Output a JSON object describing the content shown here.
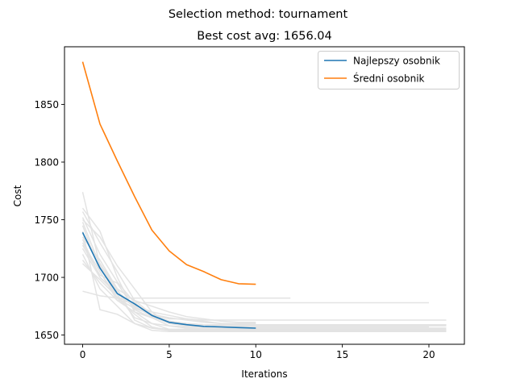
{
  "chart_data": {
    "type": "line",
    "suptitle": "Selection method: tournament",
    "title": "Best cost avg: 1656.04",
    "xlabel": "Iterations",
    "ylabel": "Cost",
    "xlim": [
      -1.05,
      22.05
    ],
    "ylim": [
      1642,
      1900
    ],
    "xticks": [
      0,
      5,
      10,
      15,
      20
    ],
    "yticks": [
      1650,
      1700,
      1750,
      1800,
      1850
    ],
    "grid": false,
    "legend_position": "top-right",
    "colors": {
      "best": "#1f77b4",
      "avg": "#ff7f0e",
      "runs": "#e3e3e3"
    },
    "series": [
      {
        "name": "Najlepszy osobnik",
        "color": "#1f77b4",
        "x": [
          0,
          1,
          2,
          3,
          4,
          5,
          6,
          7,
          8,
          9,
          10
        ],
        "y": [
          1739,
          1708,
          1686,
          1677,
          1667,
          1661,
          1659,
          1657.5,
          1657,
          1656.5,
          1656
        ]
      },
      {
        "name": "Średni osobnik",
        "color": "#ff7f0e",
        "x": [
          0,
          1,
          2,
          3,
          4,
          5,
          6,
          7,
          8,
          9,
          10
        ],
        "y": [
          1887,
          1833,
          1801,
          1770,
          1741,
          1723,
          1711,
          1705,
          1698,
          1694.5,
          1694
        ]
      }
    ],
    "background_runs": [
      {
        "x": [
          0,
          1,
          2,
          3,
          4,
          5,
          6,
          7,
          8,
          9,
          10
        ],
        "y": [
          1774,
          1710,
          1682,
          1673,
          1668,
          1662,
          1660,
          1659,
          1658,
          1658,
          1658
        ]
      },
      {
        "x": [
          0,
          1,
          2,
          3,
          4,
          5,
          6,
          7,
          8,
          9,
          10,
          11,
          12,
          13,
          14,
          15,
          16,
          17,
          18,
          19,
          20,
          21
        ],
        "y": [
          1760,
          1740,
          1700,
          1670,
          1660,
          1655,
          1654,
          1654,
          1653,
          1653,
          1653,
          1653,
          1653,
          1653,
          1653,
          1653,
          1653,
          1653,
          1653,
          1653,
          1653,
          1653
        ]
      },
      {
        "x": [
          0,
          1,
          2,
          3,
          4,
          5,
          6,
          7,
          8,
          9,
          10,
          11,
          12,
          13,
          14,
          15,
          16,
          17,
          18,
          19,
          20,
          21
        ],
        "y": [
          1757,
          1730,
          1705,
          1680,
          1668,
          1664,
          1664,
          1663,
          1663,
          1663,
          1663,
          1663,
          1663,
          1663,
          1663,
          1663,
          1663,
          1663,
          1663,
          1663,
          1663,
          1663
        ]
      },
      {
        "x": [
          0,
          1,
          2,
          3,
          4,
          5,
          6,
          7,
          8,
          9,
          10,
          11,
          12
        ],
        "y": [
          1688,
          1684,
          1682,
          1682,
          1682,
          1682,
          1682,
          1682,
          1682,
          1682,
          1682,
          1682,
          1682
        ]
      },
      {
        "x": [
          0,
          1,
          2,
          3,
          4,
          5,
          6,
          7,
          8,
          9,
          10,
          11,
          12,
          13,
          14,
          15,
          16,
          17,
          18,
          19,
          20
        ],
        "y": [
          1745,
          1705,
          1680,
          1678,
          1678,
          1678,
          1678,
          1678,
          1678,
          1678,
          1678,
          1678,
          1678,
          1678,
          1678,
          1678,
          1678,
          1678,
          1678,
          1678,
          1678
        ]
      },
      {
        "x": [
          0,
          1,
          2,
          3,
          4,
          5,
          6,
          7,
          8,
          9,
          10,
          11,
          12,
          13,
          14,
          15,
          16,
          17,
          18,
          19,
          20,
          21
        ],
        "y": [
          1750,
          1735,
          1710,
          1690,
          1670,
          1660,
          1659,
          1659,
          1658,
          1658,
          1658,
          1658,
          1658,
          1658,
          1658,
          1658,
          1658,
          1658,
          1658,
          1658,
          1658,
          1658
        ]
      },
      {
        "x": [
          0,
          1,
          2,
          3,
          4,
          5,
          6,
          7,
          8,
          9,
          10,
          11,
          12,
          13,
          14,
          15,
          16,
          17,
          18,
          19,
          20,
          21
        ],
        "y": [
          1740,
          1672,
          1668,
          1660,
          1656,
          1655,
          1655,
          1655,
          1655,
          1655,
          1655,
          1655,
          1655,
          1655,
          1655,
          1655,
          1655,
          1655,
          1655,
          1655,
          1655,
          1655
        ]
      },
      {
        "x": [
          0,
          1,
          2,
          3,
          4,
          5,
          6,
          7,
          8,
          9,
          10
        ],
        "y": [
          1735,
          1715,
          1690,
          1680,
          1675,
          1670,
          1666,
          1664,
          1662,
          1661,
          1661
        ]
      },
      {
        "x": [
          0,
          1,
          2,
          3,
          4,
          5,
          6,
          7,
          8,
          9,
          10,
          11,
          12,
          13,
          14,
          15,
          16,
          17,
          18,
          19,
          20,
          21
        ],
        "y": [
          1728,
          1702,
          1695,
          1672,
          1665,
          1658,
          1656,
          1656,
          1656,
          1656,
          1656,
          1656,
          1656,
          1656,
          1656,
          1656,
          1656,
          1656,
          1656,
          1656,
          1656,
          1656
        ]
      },
      {
        "x": [
          0,
          1,
          2,
          3,
          4,
          5,
          6,
          7,
          8,
          9,
          10,
          11,
          12,
          13,
          14,
          15,
          16,
          17,
          18,
          19,
          20
        ],
        "y": [
          1725,
          1700,
          1685,
          1665,
          1660,
          1658,
          1657,
          1657,
          1657,
          1657,
          1657,
          1657,
          1657,
          1657,
          1657,
          1657,
          1657,
          1657,
          1657,
          1657,
          1657
        ]
      },
      {
        "x": [
          0,
          1,
          2,
          3,
          4,
          5,
          6,
          7,
          8,
          9,
          10,
          11,
          12,
          13,
          14,
          15,
          16,
          17,
          18,
          19,
          20,
          21
        ],
        "y": [
          1720,
          1690,
          1675,
          1660,
          1654,
          1653,
          1653,
          1653,
          1653,
          1653,
          1653,
          1653,
          1653,
          1653,
          1653,
          1653,
          1653,
          1653,
          1653,
          1653,
          1653,
          1653
        ]
      },
      {
        "x": [
          0,
          1,
          2,
          3,
          4,
          5,
          6,
          7,
          8,
          9,
          10
        ],
        "y": [
          1715,
          1695,
          1680,
          1670,
          1665,
          1662,
          1660,
          1659,
          1658,
          1658,
          1658
        ]
      },
      {
        "x": [
          0,
          1,
          2,
          3,
          4,
          5,
          6,
          7,
          8,
          9,
          10,
          11,
          12,
          13,
          14,
          15,
          16,
          17,
          18,
          19,
          20,
          21
        ],
        "y": [
          1730,
          1705,
          1682,
          1668,
          1657,
          1654,
          1654,
          1654,
          1654,
          1654,
          1654,
          1654,
          1654,
          1654,
          1654,
          1654,
          1654,
          1654,
          1654,
          1654,
          1654,
          1654
        ]
      },
      {
        "x": [
          0,
          1,
          2,
          3,
          4,
          5,
          6,
          7,
          8,
          9,
          10,
          11,
          12,
          13,
          14,
          15,
          16,
          17,
          18,
          19,
          20,
          21
        ],
        "y": [
          1748,
          1710,
          1688,
          1675,
          1666,
          1660,
          1658,
          1657,
          1656,
          1656,
          1656,
          1656,
          1656,
          1656,
          1656,
          1656,
          1656,
          1656,
          1656,
          1656,
          1656,
          1656
        ]
      },
      {
        "x": [
          0,
          1,
          2,
          3,
          4,
          5,
          6,
          7,
          8,
          9,
          10
        ],
        "y": [
          1712,
          1698,
          1683,
          1676,
          1670,
          1667,
          1664,
          1662,
          1660,
          1659,
          1659
        ]
      },
      {
        "x": [
          0,
          1,
          2,
          3,
          4,
          5,
          6,
          7,
          8,
          9,
          10,
          11,
          12,
          13,
          14,
          15,
          16,
          17,
          18,
          19,
          20
        ],
        "y": [
          1738,
          1712,
          1690,
          1663,
          1656,
          1654,
          1654,
          1654,
          1654,
          1654,
          1654,
          1654,
          1654,
          1654,
          1654,
          1654,
          1654,
          1654,
          1654,
          1654,
          1654
        ]
      },
      {
        "x": [
          0,
          1,
          2,
          3,
          4,
          5,
          6,
          7,
          8,
          9,
          10,
          11,
          12,
          13,
          14,
          15,
          16,
          17,
          18,
          19,
          20,
          21
        ],
        "y": [
          1752,
          1720,
          1696,
          1678,
          1667,
          1662,
          1660,
          1659,
          1659,
          1659,
          1659,
          1659,
          1659,
          1659,
          1659,
          1659,
          1659,
          1659,
          1659,
          1659,
          1659,
          1659
        ]
      },
      {
        "x": [
          0,
          1,
          2,
          3,
          4,
          5,
          6,
          7,
          8,
          9,
          10
        ],
        "y": [
          1733,
          1700,
          1686,
          1674,
          1668,
          1665,
          1663,
          1661,
          1660,
          1660,
          1660
        ]
      }
    ]
  }
}
